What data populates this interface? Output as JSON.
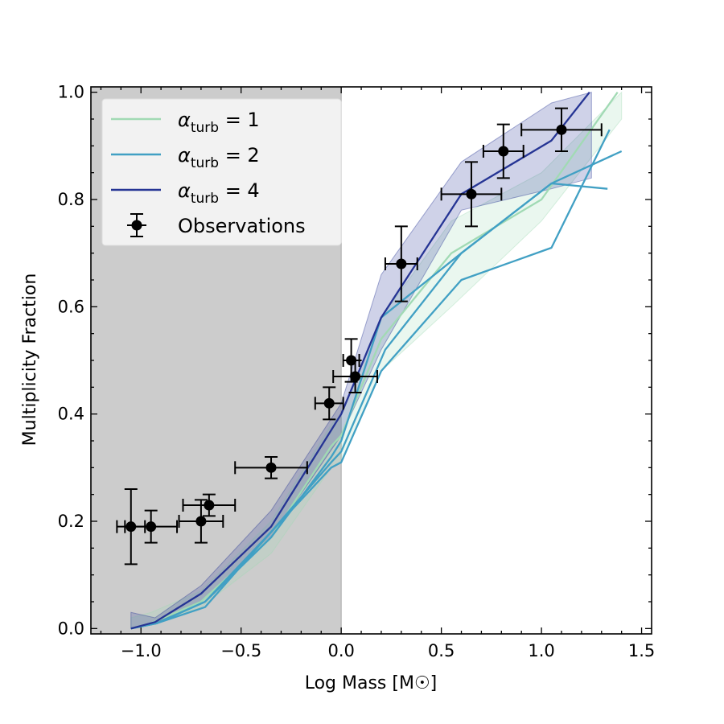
{
  "chart_data": {
    "type": "line",
    "title": "",
    "xlabel": "Log Mass [M☉]",
    "ylabel": "Multiplicity Fraction",
    "xlim": [
      -1.25,
      1.55
    ],
    "ylim": [
      -0.01,
      1.01
    ],
    "xticks": [
      -1.0,
      -0.5,
      0.0,
      0.5,
      1.0,
      1.5
    ],
    "xtick_labels": [
      "−1.0",
      "−0.5",
      "0.0",
      "0.5",
      "1.0",
      "1.5"
    ],
    "yticks": [
      0.0,
      0.2,
      0.4,
      0.6,
      0.8,
      1.0
    ],
    "ytick_labels": [
      "0.0",
      "0.2",
      "0.4",
      "0.6",
      "0.8",
      "1.0"
    ],
    "shaded_region": {
      "x_from": -1.25,
      "x_to": 0.0,
      "color": "#cccccc"
    },
    "legend": {
      "position": "top-left",
      "entries": [
        {
          "symbol": "α",
          "subscript": "turb",
          "eq": " = 1",
          "color": "#a1dab4"
        },
        {
          "symbol": "α",
          "subscript": "turb",
          "eq": " = 2",
          "color": "#41a0c4"
        },
        {
          "symbol": "α",
          "subscript": "turb",
          "eq": " = 4",
          "color": "#253494"
        },
        {
          "label": "Observations",
          "color": "#000000"
        }
      ]
    },
    "series": [
      {
        "name": "α_turb = 1",
        "color": "#a1dab4",
        "band": {
          "x": [
            -1.05,
            -0.95,
            -0.7,
            -0.35,
            -0.05,
            0.0,
            0.2,
            0.55,
            1.0,
            1.4
          ],
          "lower": [
            0.0,
            0.01,
            0.04,
            0.14,
            0.3,
            0.31,
            0.48,
            0.6,
            0.76,
            0.95
          ],
          "upper": [
            0.02,
            0.03,
            0.07,
            0.2,
            0.38,
            0.4,
            0.58,
            0.76,
            0.85,
            1.0
          ]
        },
        "lines": [
          {
            "x": [
              -1.05,
              -0.95,
              -0.7,
              -0.35,
              -0.05,
              0.0,
              0.2,
              0.55,
              1.0,
              1.38
            ],
            "y": [
              0.0,
              0.01,
              0.05,
              0.17,
              0.34,
              0.36,
              0.54,
              0.7,
              0.8,
              1.0
            ]
          }
        ]
      },
      {
        "name": "α_turb = 2",
        "color": "#41a0c4",
        "lines": [
          {
            "x": [
              -1.05,
              -0.92,
              -0.68,
              -0.35,
              -0.05,
              0.0,
              0.2,
              0.6,
              1.05,
              1.34
            ],
            "y": [
              0.0,
              0.01,
              0.04,
              0.18,
              0.3,
              0.31,
              0.48,
              0.65,
              0.71,
              0.93
            ]
          },
          {
            "x": [
              -1.05,
              -0.92,
              -0.68,
              -0.35,
              -0.05,
              0.0,
              0.22,
              0.6,
              1.05,
              1.4
            ],
            "y": [
              0.0,
              0.01,
              0.05,
              0.18,
              0.31,
              0.33,
              0.52,
              0.7,
              0.83,
              0.89
            ]
          },
          {
            "x": [
              -1.05,
              -0.92,
              -0.68,
              -0.35,
              -0.05,
              0.0,
              0.2,
              0.6,
              1.05,
              1.33
            ],
            "y": [
              0.0,
              0.01,
              0.05,
              0.17,
              0.32,
              0.35,
              0.58,
              0.7,
              0.83,
              0.82
            ]
          }
        ]
      },
      {
        "name": "α_turb = 4",
        "color": "#253494",
        "band": {
          "x": [
            -1.05,
            -0.93,
            -0.7,
            -0.35,
            0.0,
            0.2,
            0.6,
            1.05,
            1.25
          ],
          "lower": [
            0.0,
            0.01,
            0.05,
            0.17,
            0.36,
            0.52,
            0.78,
            0.82,
            0.84
          ],
          "upper": [
            0.03,
            0.02,
            0.08,
            0.22,
            0.42,
            0.66,
            0.87,
            0.98,
            1.0
          ]
        },
        "lines": [
          {
            "x": [
              -1.05,
              -0.93,
              -0.7,
              -0.35,
              0.0,
              0.2,
              0.6,
              1.05,
              1.24
            ],
            "y": [
              0.0,
              0.012,
              0.065,
              0.19,
              0.4,
              0.58,
              0.81,
              0.91,
              1.0
            ]
          }
        ]
      }
    ],
    "observations": {
      "name": "Observations",
      "color": "#000000",
      "points": [
        {
          "x": -1.05,
          "y": 0.19,
          "xerr": 0.07,
          "yerr": 0.07
        },
        {
          "x": -0.95,
          "y": 0.19,
          "xerr": 0.13,
          "yerr": 0.03
        },
        {
          "x": -0.7,
          "y": 0.2,
          "xerr": 0.11,
          "yerr": 0.04
        },
        {
          "x": -0.66,
          "y": 0.23,
          "xerr": 0.13,
          "yerr": 0.02
        },
        {
          "x": -0.35,
          "y": 0.3,
          "xerr": 0.18,
          "yerr": 0.02
        },
        {
          "x": -0.06,
          "y": 0.42,
          "xerr": 0.07,
          "yerr": 0.03
        },
        {
          "x": 0.05,
          "y": 0.5,
          "xerr": 0.04,
          "yerr": 0.04
        },
        {
          "x": 0.07,
          "y": 0.47,
          "xerr": 0.11,
          "yerr": 0.03
        },
        {
          "x": 0.3,
          "y": 0.68,
          "xerr": 0.08,
          "yerr": 0.07
        },
        {
          "x": 0.65,
          "y": 0.81,
          "xerr": 0.15,
          "yerr": 0.06
        },
        {
          "x": 0.81,
          "y": 0.89,
          "xerr": 0.1,
          "yerr": 0.05
        },
        {
          "x": 1.1,
          "y": 0.93,
          "xerr": 0.2,
          "yerr": 0.04
        }
      ]
    }
  }
}
